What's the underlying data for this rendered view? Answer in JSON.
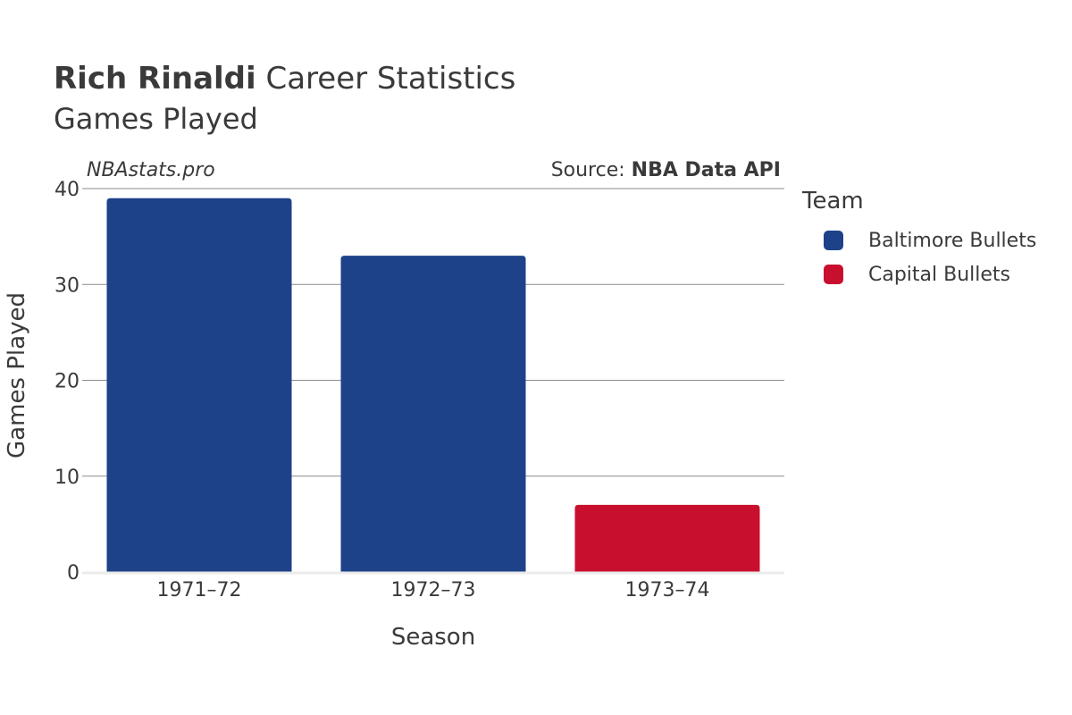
{
  "header": {
    "player_name": "Rich Rinaldi",
    "title_suffix": "Career Statistics",
    "subtitle": "Games Played",
    "watermark": "NBAstats.pro",
    "source_prefix": "Source: ",
    "source_name": "NBA Data API"
  },
  "legend": {
    "title": "Team",
    "items": [
      {
        "label": "Baltimore Bullets",
        "color": "#1d4289"
      },
      {
        "label": "Capital Bullets",
        "color": "#c8102e"
      }
    ]
  },
  "chart_data": {
    "type": "bar",
    "title": "Rich Rinaldi Career Statistics",
    "subtitle": "Games Played",
    "xlabel": "Season",
    "ylabel": "Games Played",
    "ylim": [
      0,
      40
    ],
    "yticks": [
      0,
      10,
      20,
      30,
      40
    ],
    "categories": [
      "1971–72",
      "1972–73",
      "1973–74"
    ],
    "values": [
      39,
      33,
      7
    ],
    "teams": [
      "Baltimore Bullets",
      "Baltimore Bullets",
      "Capital Bullets"
    ],
    "colors": [
      "#1d4289",
      "#1d4289",
      "#c8102e"
    ],
    "grid": true,
    "legend_position": "right"
  }
}
